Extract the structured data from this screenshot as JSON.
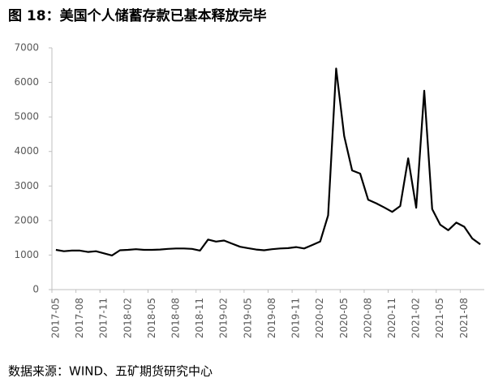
{
  "chart_data": {
    "type": "line",
    "title": "图 18：美国个人储蓄存款已基本释放完毕",
    "source": "数据来源：WIND、五矿期货研究中心",
    "categories": [
      "2017-05",
      null,
      null,
      "2017-08",
      null,
      null,
      "2017-11",
      null,
      null,
      "2018-02",
      null,
      null,
      "2018-05",
      null,
      null,
      "2018-08",
      null,
      null,
      "2018-11",
      null,
      null,
      "2019-02",
      null,
      null,
      "2019-05",
      null,
      null,
      "2019-08",
      null,
      null,
      "2019-11",
      null,
      null,
      "2020-02",
      null,
      null,
      "2020-05",
      null,
      null,
      "2020-08",
      null,
      null,
      "2020-11",
      null,
      null,
      "2021-02",
      null,
      null,
      "2021-05",
      null,
      null,
      "2021-08",
      null,
      null
    ],
    "values": [
      1150,
      1110,
      1130,
      1130,
      1090,
      1110,
      1050,
      990,
      1140,
      1150,
      1170,
      1150,
      1150,
      1160,
      1180,
      1190,
      1190,
      1180,
      1130,
      1450,
      1390,
      1420,
      1330,
      1240,
      1200,
      1160,
      1140,
      1170,
      1190,
      1200,
      1230,
      1190,
      1290,
      1390,
      2150,
      6400,
      4450,
      3450,
      3360,
      2600,
      2500,
      2380,
      2250,
      2420,
      3800,
      2370,
      5760,
      2330,
      1880,
      1720,
      1940,
      1820,
      1480,
      1310
    ],
    "color": "#000000",
    "ylim": [
      0,
      7000
    ],
    "yticks": [
      0,
      1000,
      2000,
      3000,
      4000,
      5000,
      6000,
      7000
    ],
    "grid": false
  }
}
